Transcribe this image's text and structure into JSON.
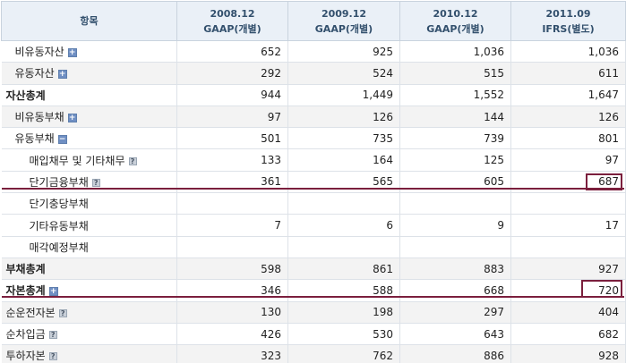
{
  "header": {
    "item_label": "항목",
    "columns": [
      {
        "period": "2008.12",
        "standard": "GAAP(개별)"
      },
      {
        "period": "2009.12",
        "standard": "GAAP(개별)"
      },
      {
        "period": "2010.12",
        "standard": "GAAP(개별)"
      },
      {
        "period": "2011.09",
        "standard": "IFRS(별도)"
      }
    ]
  },
  "rows": [
    {
      "label": "비유동자산",
      "values": [
        "652",
        "925",
        "1,036",
        "1,036"
      ],
      "level": 1,
      "bold": false,
      "shade": false,
      "icon": "plus"
    },
    {
      "label": "유동자산",
      "values": [
        "292",
        "524",
        "515",
        "611"
      ],
      "level": 1,
      "bold": false,
      "shade": true,
      "icon": "plus"
    },
    {
      "label": "자산총계",
      "values": [
        "944",
        "1,449",
        "1,552",
        "1,647"
      ],
      "level": 0,
      "bold": true,
      "shade": false,
      "icon": "none"
    },
    {
      "label": "비유동부채",
      "values": [
        "97",
        "126",
        "144",
        "126"
      ],
      "level": 1,
      "bold": false,
      "shade": true,
      "icon": "plus"
    },
    {
      "label": "유동부채",
      "values": [
        "501",
        "735",
        "739",
        "801"
      ],
      "level": 1,
      "bold": false,
      "shade": false,
      "icon": "minus"
    },
    {
      "label": "매입채무 및 기타채무",
      "values": [
        "133",
        "164",
        "125",
        "97"
      ],
      "level": 2,
      "bold": false,
      "shade": false,
      "icon": "help"
    },
    {
      "label": "단기금융부채",
      "values": [
        "361",
        "565",
        "605",
        "687"
      ],
      "level": 2,
      "bold": false,
      "shade": false,
      "icon": "help"
    },
    {
      "label": "단기충당부채",
      "values": [
        "",
        "",
        "",
        ""
      ],
      "level": 2,
      "bold": false,
      "shade": false,
      "icon": "none"
    },
    {
      "label": "기타유동부채",
      "values": [
        "7",
        "6",
        "9",
        "17"
      ],
      "level": 2,
      "bold": false,
      "shade": false,
      "icon": "none"
    },
    {
      "label": "매각예정부채",
      "values": [
        "",
        "",
        "",
        ""
      ],
      "level": 2,
      "bold": false,
      "shade": false,
      "icon": "none"
    },
    {
      "label": "부채총계",
      "values": [
        "598",
        "861",
        "883",
        "927"
      ],
      "level": 0,
      "bold": true,
      "shade": true,
      "icon": "none"
    },
    {
      "label": "자본총계",
      "values": [
        "346",
        "588",
        "668",
        "720"
      ],
      "level": 0,
      "bold": true,
      "shade": false,
      "icon": "plus"
    },
    {
      "label": "순운전자본",
      "values": [
        "130",
        "198",
        "297",
        "404"
      ],
      "level": 0,
      "bold": false,
      "shade": true,
      "icon": "help"
    },
    {
      "label": "순차입금",
      "values": [
        "426",
        "530",
        "643",
        "682"
      ],
      "level": 0,
      "bold": false,
      "shade": false,
      "icon": "help"
    },
    {
      "label": "투하자본",
      "values": [
        "323",
        "762",
        "886",
        "928"
      ],
      "level": 0,
      "bold": false,
      "shade": true,
      "icon": "help"
    }
  ],
  "icons": {
    "plus": "expand-plus-icon",
    "minus": "collapse-minus-icon",
    "help": "help-question-icon"
  },
  "icon_glyphs": {
    "plus": "+",
    "minus": "−",
    "help": "?"
  },
  "colors": {
    "header_bg": "#eaf0f7",
    "header_text": "#33506d",
    "shade_row": "#f3f3f3",
    "highlight": "#7b1f3d",
    "toggle_icon": "#6f8fc3"
  }
}
